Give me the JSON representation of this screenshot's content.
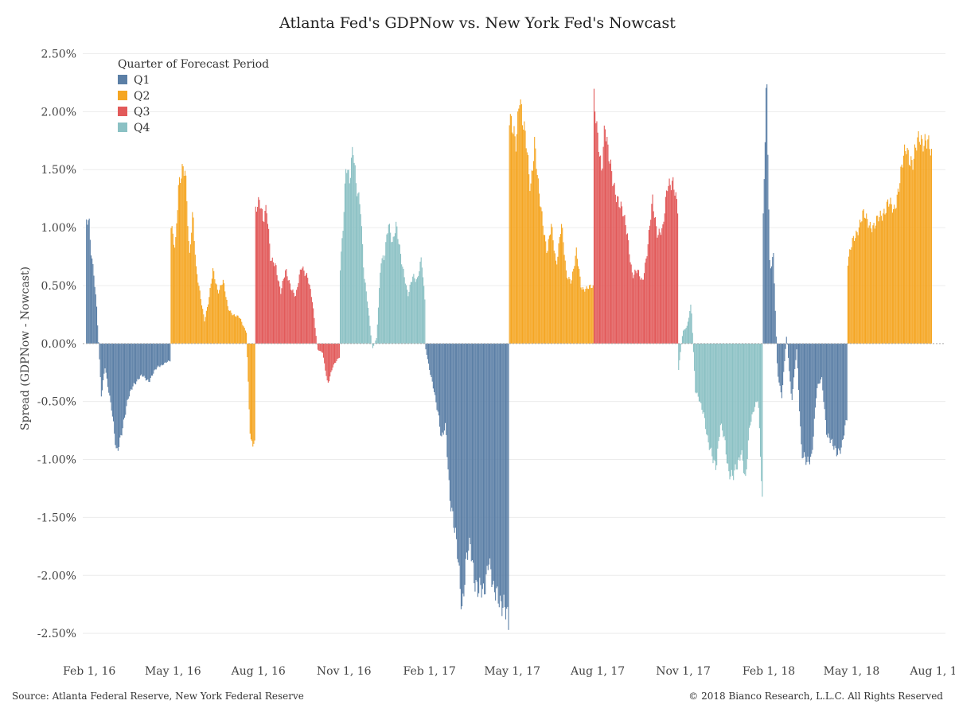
{
  "chart_data": {
    "type": "bar",
    "title": "Atlanta Fed's GDPNow vs. New York Fed's Nowcast",
    "ylabel": "Spread (GDPNow - Nowcast)",
    "xlabel": "",
    "ylim": [
      -2.65,
      2.62
    ],
    "xlim": [
      "2016-01-25",
      "2018-08-10"
    ],
    "yticks": [
      2.5,
      2.0,
      1.5,
      1.0,
      0.5,
      0.0,
      -0.5,
      -1.0,
      -1.5,
      -2.0,
      -2.5
    ],
    "ytick_labels": [
      "2.50%",
      "2.00%",
      "1.50%",
      "1.00%",
      "0.50%",
      "0.00%",
      "-0.50%",
      "-1.00%",
      "-1.50%",
      "-2.00%",
      "-2.50%"
    ],
    "xticks": [
      "2016-02-01",
      "2016-05-01",
      "2016-08-01",
      "2016-11-01",
      "2017-02-01",
      "2017-05-01",
      "2017-08-01",
      "2017-11-01",
      "2018-02-01",
      "2018-05-01",
      "2018-08-01"
    ],
    "xtick_labels": [
      "Feb 1, 16",
      "May 1, 16",
      "Aug 1, 16",
      "Nov 1, 16",
      "Feb 1, 17",
      "May 1, 17",
      "Aug 1, 17",
      "Nov 1, 17",
      "Feb 1, 18",
      "May 1, 18",
      "Aug 1, 18"
    ],
    "grid": true,
    "legend": {
      "title": "Quarter of Forecast Period",
      "position": "top-left",
      "items": [
        {
          "name": "Q1",
          "color": "#5b7fa6"
        },
        {
          "name": "Q2",
          "color": "#f5a623"
        },
        {
          "name": "Q3",
          "color": "#e25a5a"
        },
        {
          "name": "Q4",
          "color": "#8bc1c4"
        }
      ]
    },
    "segments": [
      {
        "quarter": "Q1",
        "start": "2016-01-29",
        "end": "2016-04-28",
        "points": [
          [
            0,
            1.05
          ],
          [
            0.03,
            1.05
          ],
          [
            0.05,
            0.8
          ],
          [
            0.09,
            0.6
          ],
          [
            0.12,
            0.35
          ],
          [
            0.18,
            -0.48
          ],
          [
            0.22,
            -0.2
          ],
          [
            0.3,
            -0.55
          ],
          [
            0.36,
            -0.98
          ],
          [
            0.42,
            -0.75
          ],
          [
            0.5,
            -0.48
          ],
          [
            0.56,
            -0.35
          ],
          [
            0.66,
            -0.28
          ],
          [
            0.75,
            -0.32
          ],
          [
            0.85,
            -0.2
          ],
          [
            1,
            -0.15
          ]
        ]
      },
      {
        "quarter": "Q2",
        "start": "2016-04-29",
        "end": "2016-07-28",
        "points": [
          [
            0,
            1.02
          ],
          [
            0.05,
            0.78
          ],
          [
            0.09,
            1.38
          ],
          [
            0.13,
            1.54
          ],
          [
            0.17,
            1.48
          ],
          [
            0.22,
            0.72
          ],
          [
            0.26,
            1.18
          ],
          [
            0.3,
            0.65
          ],
          [
            0.35,
            0.4
          ],
          [
            0.4,
            0.2
          ],
          [
            0.45,
            0.38
          ],
          [
            0.5,
            0.62
          ],
          [
            0.56,
            0.45
          ],
          [
            0.62,
            0.55
          ],
          [
            0.68,
            0.3
          ],
          [
            0.75,
            0.25
          ],
          [
            0.82,
            0.22
          ],
          [
            0.9,
            0.1
          ],
          [
            0.95,
            -0.88
          ],
          [
            1,
            -0.88
          ]
        ]
      },
      {
        "quarter": "Q3",
        "start": "2016-07-29",
        "end": "2016-10-27",
        "points": [
          [
            0,
            1.15
          ],
          [
            0.05,
            1.2
          ],
          [
            0.09,
            1.08
          ],
          [
            0.13,
            1.22
          ],
          [
            0.18,
            0.7
          ],
          [
            0.24,
            0.68
          ],
          [
            0.3,
            0.45
          ],
          [
            0.36,
            0.62
          ],
          [
            0.42,
            0.5
          ],
          [
            0.48,
            0.4
          ],
          [
            0.55,
            0.68
          ],
          [
            0.62,
            0.58
          ],
          [
            0.68,
            0.35
          ],
          [
            0.74,
            -0.05
          ],
          [
            0.8,
            -0.08
          ],
          [
            0.86,
            -0.35
          ],
          [
            0.92,
            -0.2
          ],
          [
            1,
            -0.12
          ]
        ]
      },
      {
        "quarter": "Q4",
        "start": "2016-10-28",
        "end": "2017-01-27",
        "points": [
          [
            0,
            0.65
          ],
          [
            0.04,
            1.05
          ],
          [
            0.07,
            1.55
          ],
          [
            0.11,
            1.45
          ],
          [
            0.15,
            1.72
          ],
          [
            0.19,
            1.3
          ],
          [
            0.24,
            1.2
          ],
          [
            0.28,
            0.62
          ],
          [
            0.33,
            0.3
          ],
          [
            0.38,
            -0.05
          ],
          [
            0.43,
            0.05
          ],
          [
            0.48,
            0.7
          ],
          [
            0.52,
            0.72
          ],
          [
            0.57,
            1.08
          ],
          [
            0.62,
            0.85
          ],
          [
            0.66,
            1.0
          ],
          [
            0.7,
            0.85
          ],
          [
            0.75,
            0.62
          ],
          [
            0.8,
            0.4
          ],
          [
            0.86,
            0.6
          ],
          [
            0.91,
            0.55
          ],
          [
            0.96,
            0.72
          ],
          [
            1,
            0.38
          ]
        ]
      },
      {
        "quarter": "Q1",
        "start": "2017-01-28",
        "end": "2017-04-27",
        "points": [
          [
            0,
            -0.05
          ],
          [
            0.05,
            -0.25
          ],
          [
            0.1,
            -0.4
          ],
          [
            0.15,
            -0.6
          ],
          [
            0.19,
            -0.85
          ],
          [
            0.24,
            -0.7
          ],
          [
            0.29,
            -1.3
          ],
          [
            0.34,
            -1.6
          ],
          [
            0.39,
            -1.85
          ],
          [
            0.44,
            -2.25
          ],
          [
            0.49,
            -1.9
          ],
          [
            0.54,
            -1.75
          ],
          [
            0.59,
            -2.0
          ],
          [
            0.64,
            -2.15
          ],
          [
            0.7,
            -2.18
          ],
          [
            0.76,
            -1.8
          ],
          [
            0.82,
            -2.2
          ],
          [
            0.88,
            -2.15
          ],
          [
            0.94,
            -2.25
          ],
          [
            1,
            -2.47
          ]
        ]
      },
      {
        "quarter": "Q2",
        "start": "2017-04-28",
        "end": "2017-07-27",
        "points": [
          [
            0,
            1.95
          ],
          [
            0.04,
            1.8
          ],
          [
            0.08,
            1.72
          ],
          [
            0.12,
            2.22
          ],
          [
            0.16,
            1.9
          ],
          [
            0.2,
            1.7
          ],
          [
            0.25,
            1.35
          ],
          [
            0.3,
            1.75
          ],
          [
            0.35,
            1.28
          ],
          [
            0.4,
            1.05
          ],
          [
            0.45,
            0.8
          ],
          [
            0.5,
            1.0
          ],
          [
            0.56,
            0.68
          ],
          [
            0.62,
            1.05
          ],
          [
            0.68,
            0.58
          ],
          [
            0.74,
            0.55
          ],
          [
            0.8,
            0.78
          ],
          [
            0.86,
            0.48
          ],
          [
            0.92,
            0.48
          ],
          [
            1,
            0.48
          ]
        ]
      },
      {
        "quarter": "Q3",
        "start": "2017-07-28",
        "end": "2017-10-26",
        "points": [
          [
            0,
            2.12
          ],
          [
            0.04,
            1.75
          ],
          [
            0.09,
            1.5
          ],
          [
            0.13,
            1.95
          ],
          [
            0.17,
            1.62
          ],
          [
            0.22,
            1.4
          ],
          [
            0.28,
            1.28
          ],
          [
            0.34,
            1.12
          ],
          [
            0.4,
            0.95
          ],
          [
            0.46,
            0.58
          ],
          [
            0.52,
            0.62
          ],
          [
            0.58,
            0.55
          ],
          [
            0.64,
            0.8
          ],
          [
            0.7,
            1.25
          ],
          [
            0.76,
            0.95
          ],
          [
            0.82,
            0.95
          ],
          [
            0.88,
            1.42
          ],
          [
            0.94,
            1.38
          ],
          [
            1,
            1.15
          ]
        ]
      },
      {
        "quarter": "Q4",
        "start": "2017-10-27",
        "end": "2018-01-25",
        "points": [
          [
            0,
            -0.22
          ],
          [
            0.05,
            0.1
          ],
          [
            0.1,
            0.15
          ],
          [
            0.15,
            0.35
          ],
          [
            0.2,
            -0.42
          ],
          [
            0.25,
            -0.48
          ],
          [
            0.3,
            -0.6
          ],
          [
            0.35,
            -0.88
          ],
          [
            0.4,
            -0.95
          ],
          [
            0.45,
            -1.05
          ],
          [
            0.5,
            -0.72
          ],
          [
            0.55,
            -0.82
          ],
          [
            0.6,
            -1.1
          ],
          [
            0.65,
            -1.18
          ],
          [
            0.7,
            -1.05
          ],
          [
            0.75,
            -0.9
          ],
          [
            0.8,
            -1.22
          ],
          [
            0.85,
            -0.7
          ],
          [
            0.9,
            -0.55
          ],
          [
            0.95,
            -0.48
          ],
          [
            1,
            -1.38
          ]
        ]
      },
      {
        "quarter": "Q1",
        "start": "2018-01-26",
        "end": "2018-04-26",
        "points": [
          [
            0,
            1.08
          ],
          [
            0.04,
            2.3
          ],
          [
            0.08,
            0.6
          ],
          [
            0.12,
            0.82
          ],
          [
            0.17,
            -0.25
          ],
          [
            0.22,
            -0.48
          ],
          [
            0.28,
            0.08
          ],
          [
            0.34,
            -0.52
          ],
          [
            0.4,
            -0.05
          ],
          [
            0.46,
            -0.95
          ],
          [
            0.52,
            -1.05
          ],
          [
            0.58,
            -0.95
          ],
          [
            0.64,
            -0.4
          ],
          [
            0.7,
            -0.3
          ],
          [
            0.76,
            -0.78
          ],
          [
            0.82,
            -0.88
          ],
          [
            0.88,
            -0.92
          ],
          [
            0.94,
            -0.9
          ],
          [
            1,
            -0.65
          ]
        ]
      },
      {
        "quarter": "Q2",
        "start": "2018-04-27",
        "end": "2018-07-26",
        "points": [
          [
            0,
            0.7
          ],
          [
            0.06,
            0.88
          ],
          [
            0.12,
            1.0
          ],
          [
            0.18,
            1.1
          ],
          [
            0.25,
            1.05
          ],
          [
            0.32,
            1.0
          ],
          [
            0.4,
            1.12
          ],
          [
            0.48,
            1.2
          ],
          [
            0.55,
            1.15
          ],
          [
            0.62,
            1.4
          ],
          [
            0.7,
            1.7
          ],
          [
            0.78,
            1.55
          ],
          [
            0.86,
            1.8
          ],
          [
            0.93,
            1.75
          ],
          [
            1,
            1.62
          ]
        ]
      }
    ]
  },
  "footer": {
    "source": "Source: Atlanta Federal Reserve, New York Federal Reserve",
    "copyright": "© 2018 Bianco Research, L.L.C. All Rights Reserved"
  }
}
